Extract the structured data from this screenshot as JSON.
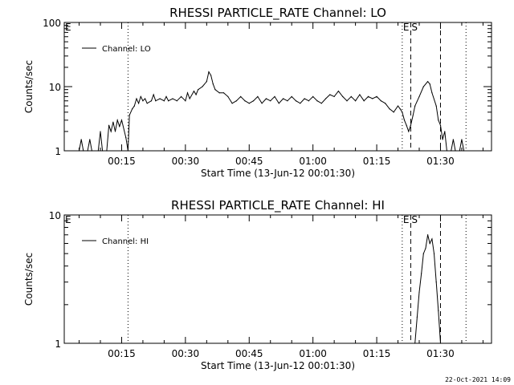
{
  "chart_data": [
    {
      "type": "line",
      "title": "RHESSI PARTICLE_RATE Channel: LO",
      "xlabel": "Start Time (13-Jun-12 00:01:30)",
      "ylabel": "Counts/sec",
      "y_scale": "log",
      "ylim": [
        1,
        100
      ],
      "xlim": [
        "00:01:30",
        "01:42:00"
      ],
      "x_tick_labels": [
        "00:15",
        "00:30",
        "00:45",
        "01:00",
        "01:15",
        "01:30"
      ],
      "y_tick_labels": [
        "1",
        "10",
        "100"
      ],
      "legend": {
        "placement": "top-left",
        "label": "Channel: LO"
      },
      "markers": [
        {
          "label": "E",
          "time": "00:01:30",
          "style": "none"
        },
        {
          "label": "",
          "time": "00:16:30",
          "style": "dotted"
        },
        {
          "label": "E",
          "time": "01:21:00",
          "style": "dotted"
        },
        {
          "label": "S",
          "time": "01:23:00",
          "style": "dashed"
        },
        {
          "label": "",
          "time": "01:30:00",
          "style": "dashed"
        },
        {
          "label": "",
          "time": "01:36:00",
          "style": "dotted"
        }
      ],
      "series": [
        {
          "points": [
            [
              "00:05:00",
              1
            ],
            [
              "00:05:30",
              1.5
            ],
            [
              "00:06:00",
              1
            ],
            [
              "00:07:00",
              1
            ],
            [
              "00:07:30",
              1.5
            ],
            [
              "00:08:00",
              1
            ],
            [
              "00:09:30",
              1
            ],
            [
              "00:10:00",
              2
            ],
            [
              "00:10:30",
              1
            ],
            [
              "00:11:30",
              1
            ],
            [
              "00:12:00",
              2.5
            ],
            [
              "00:12:30",
              2
            ],
            [
              "00:13:00",
              2.8
            ],
            [
              "00:13:30",
              2
            ],
            [
              "00:14:00",
              3
            ],
            [
              "00:14:30",
              2.4
            ],
            [
              "00:15:00",
              3
            ],
            [
              "00:16:00",
              1.6
            ],
            [
              "00:16:30",
              1
            ],
            [
              "00:16:50",
              3.6
            ],
            [
              "00:17:30",
              4.5
            ],
            [
              "00:18:00",
              5
            ],
            [
              "00:18:30",
              6.5
            ],
            [
              "00:19:00",
              5.5
            ],
            [
              "00:19:30",
              7
            ],
            [
              "00:20:00",
              6
            ],
            [
              "00:20:30",
              6.5
            ],
            [
              "00:21:00",
              5.5
            ],
            [
              "00:22:00",
              6
            ],
            [
              "00:22:30",
              7.5
            ],
            [
              "00:23:00",
              6
            ],
            [
              "00:24:00",
              6.5
            ],
            [
              "00:25:00",
              6
            ],
            [
              "00:25:30",
              7
            ],
            [
              "00:26:00",
              6
            ],
            [
              "00:27:00",
              6.5
            ],
            [
              "00:28:00",
              6
            ],
            [
              "00:29:00",
              7
            ],
            [
              "00:30:00",
              6
            ],
            [
              "00:30:30",
              8
            ],
            [
              "00:31:00",
              6.5
            ],
            [
              "00:32:00",
              8.5
            ],
            [
              "00:32:30",
              7.5
            ],
            [
              "00:33:00",
              9
            ],
            [
              "00:34:00",
              10
            ],
            [
              "00:35:00",
              12
            ],
            [
              "00:35:30",
              17
            ],
            [
              "00:36:00",
              15
            ],
            [
              "00:36:30",
              11
            ],
            [
              "00:37:00",
              9
            ],
            [
              "00:38:00",
              8
            ],
            [
              "00:39:00",
              8
            ],
            [
              "00:40:00",
              7
            ],
            [
              "00:41:00",
              5.5
            ],
            [
              "00:42:00",
              6
            ],
            [
              "00:43:00",
              7
            ],
            [
              "00:44:00",
              6
            ],
            [
              "00:45:00",
              5.5
            ],
            [
              "00:46:00",
              6
            ],
            [
              "00:47:00",
              7
            ],
            [
              "00:48:00",
              5.5
            ],
            [
              "00:49:00",
              6.5
            ],
            [
              "00:50:00",
              6
            ],
            [
              "00:51:00",
              7
            ],
            [
              "00:52:00",
              5.5
            ],
            [
              "00:53:00",
              6.5
            ],
            [
              "00:54:00",
              6
            ],
            [
              "00:55:00",
              7
            ],
            [
              "00:56:00",
              6
            ],
            [
              "00:57:00",
              5.5
            ],
            [
              "00:58:00",
              6.5
            ],
            [
              "00:59:00",
              6
            ],
            [
              "01:00:00",
              7
            ],
            [
              "01:01:00",
              6
            ],
            [
              "01:02:00",
              5.5
            ],
            [
              "01:03:00",
              6.5
            ],
            [
              "01:04:00",
              7.5
            ],
            [
              "01:05:00",
              7
            ],
            [
              "01:06:00",
              8.5
            ],
            [
              "01:07:00",
              7
            ],
            [
              "01:08:00",
              6
            ],
            [
              "01:09:00",
              7
            ],
            [
              "01:10:00",
              6
            ],
            [
              "01:11:00",
              7.5
            ],
            [
              "01:12:00",
              6
            ],
            [
              "01:13:00",
              7
            ],
            [
              "01:14:00",
              6.5
            ],
            [
              "01:15:00",
              7
            ],
            [
              "01:16:00",
              6
            ],
            [
              "01:17:00",
              5.5
            ],
            [
              "01:18:00",
              4.5
            ],
            [
              "01:19:00",
              4
            ],
            [
              "01:20:00",
              5
            ],
            [
              "01:20:30",
              4.5
            ],
            [
              "01:21:00",
              4
            ],
            [
              "01:21:30",
              3
            ],
            [
              "01:22:00",
              2.5
            ],
            [
              "01:22:30",
              2
            ],
            [
              "01:23:00",
              2.5
            ],
            [
              "01:23:30",
              3.5
            ],
            [
              "01:24:00",
              5
            ],
            [
              "01:25:00",
              7
            ],
            [
              "01:26:00",
              10
            ],
            [
              "01:27:00",
              12
            ],
            [
              "01:27:30",
              11
            ],
            [
              "01:28:00",
              8
            ],
            [
              "01:29:00",
              5
            ],
            [
              "01:29:30",
              3
            ],
            [
              "01:30:00",
              2.5
            ],
            [
              "01:30:30",
              1.5
            ],
            [
              "01:31:00",
              2
            ],
            [
              "01:31:30",
              1
            ],
            [
              "01:32:30",
              1
            ],
            [
              "01:33:00",
              1.5
            ],
            [
              "01:33:30",
              1
            ],
            [
              "01:34:30",
              1
            ],
            [
              "01:35:00",
              1.5
            ],
            [
              "01:35:30",
              1
            ]
          ]
        }
      ]
    },
    {
      "type": "line",
      "title": "RHESSI PARTICLE_RATE Channel: HI",
      "xlabel": "Start Time (13-Jun-12 00:01:30)",
      "ylabel": "Counts/sec",
      "y_scale": "log",
      "ylim": [
        1,
        10
      ],
      "xlim": [
        "00:01:30",
        "01:42:00"
      ],
      "x_tick_labels": [
        "00:15",
        "00:30",
        "00:45",
        "01:00",
        "01:15",
        "01:30"
      ],
      "y_tick_labels": [
        "1",
        "10"
      ],
      "legend": {
        "placement": "top-left",
        "label": "Channel: HI"
      },
      "markers": [
        {
          "label": "E",
          "time": "00:01:30",
          "style": "none"
        },
        {
          "label": "",
          "time": "00:16:30",
          "style": "dotted"
        },
        {
          "label": "E",
          "time": "01:21:00",
          "style": "dotted"
        },
        {
          "label": "S",
          "time": "01:23:00",
          "style": "dashed"
        },
        {
          "label": "",
          "time": "01:30:00",
          "style": "dashed"
        },
        {
          "label": "",
          "time": "01:36:00",
          "style": "dotted"
        }
      ],
      "series": [
        {
          "points": [
            [
              "01:24:00",
              1
            ],
            [
              "01:24:30",
              1.6
            ],
            [
              "01:25:00",
              2.5
            ],
            [
              "01:25:30",
              3.5
            ],
            [
              "01:26:00",
              5
            ],
            [
              "01:26:30",
              5.5
            ],
            [
              "01:27:00",
              7
            ],
            [
              "01:27:30",
              6
            ],
            [
              "01:28:00",
              6.5
            ],
            [
              "01:28:30",
              5
            ],
            [
              "01:29:00",
              3
            ],
            [
              "01:29:30",
              1.8
            ],
            [
              "01:30:00",
              1
            ]
          ]
        }
      ]
    }
  ],
  "footer": {
    "date_stamp": "22-Oct-2021 14:09"
  }
}
